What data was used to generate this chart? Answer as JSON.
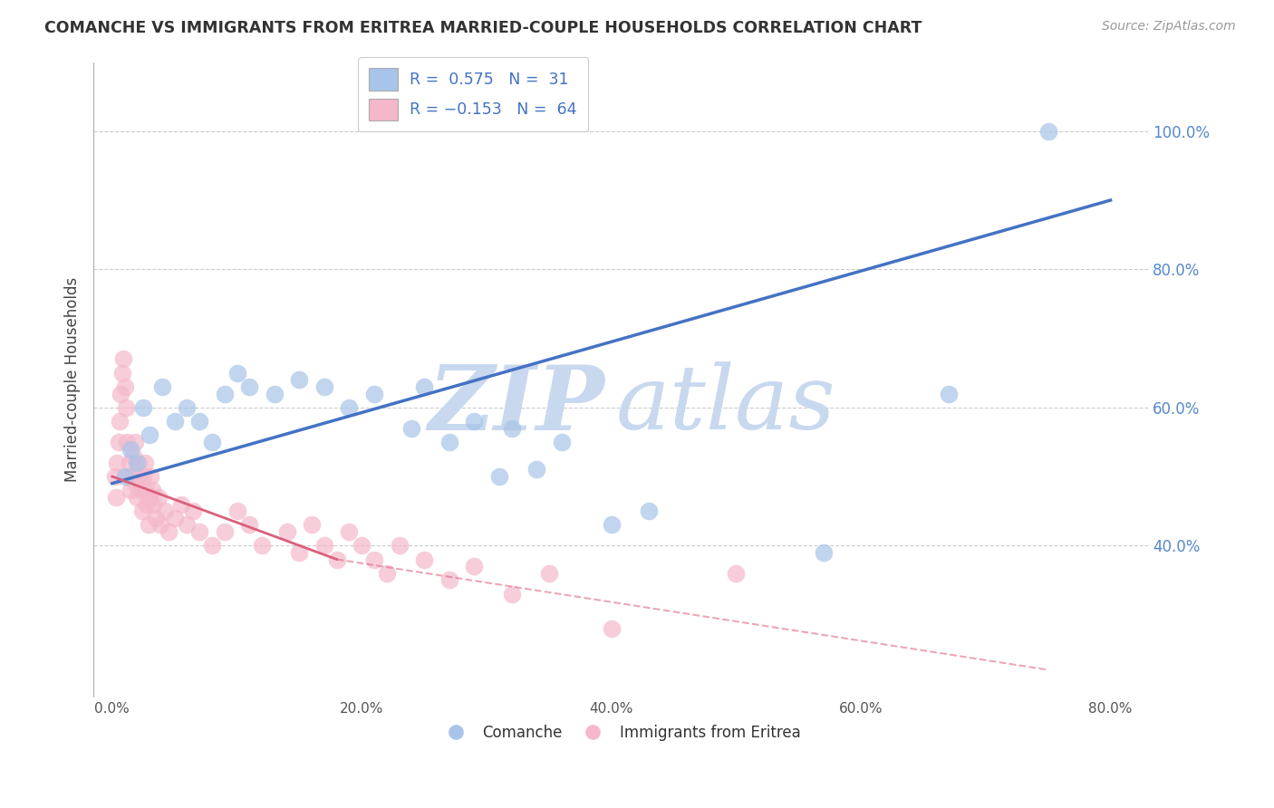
{
  "title": "COMANCHE VS IMMIGRANTS FROM ERITREA MARRIED-COUPLE HOUSEHOLDS CORRELATION CHART",
  "source": "Source: ZipAtlas.com",
  "ylabel": "Married-couple Households",
  "xlabel_vals": [
    0.0,
    20.0,
    40.0,
    60.0,
    80.0
  ],
  "ylabel_vals": [
    40.0,
    60.0,
    80.0,
    100.0
  ],
  "xlim": [
    -1.5,
    83
  ],
  "ylim": [
    18,
    110
  ],
  "blue_color": "#a8c4e8",
  "pink_color": "#f5b8cb",
  "blue_line_color": "#4472c4",
  "pink_line_color": "#d9607a",
  "watermark_zip_color": "#c8d8ee",
  "watermark_atlas_color": "#c8d8ee",
  "background_color": "#ffffff",
  "grid_color": "#cccccc",
  "blue_dots_x": [
    1.0,
    1.5,
    2.0,
    2.5,
    3.0,
    4.0,
    5.0,
    6.0,
    7.0,
    8.0,
    9.0,
    10.0,
    11.0,
    13.0,
    15.0,
    17.0,
    19.0,
    21.0,
    24.0,
    25.0,
    27.0,
    29.0,
    31.0,
    32.0,
    34.0,
    36.0,
    40.0,
    43.0,
    57.0,
    67.0,
    75.0
  ],
  "blue_dots_y": [
    50,
    54,
    52,
    60,
    56,
    63,
    58,
    60,
    58,
    55,
    62,
    65,
    63,
    62,
    64,
    63,
    60,
    62,
    57,
    63,
    55,
    58,
    50,
    57,
    51,
    55,
    43,
    45,
    39,
    62,
    100
  ],
  "pink_dots_x": [
    0.2,
    0.3,
    0.4,
    0.5,
    0.6,
    0.7,
    0.8,
    0.9,
    1.0,
    1.1,
    1.2,
    1.3,
    1.4,
    1.5,
    1.6,
    1.7,
    1.8,
    1.9,
    2.0,
    2.1,
    2.2,
    2.3,
    2.4,
    2.5,
    2.6,
    2.7,
    2.8,
    2.9,
    3.0,
    3.1,
    3.2,
    3.3,
    3.5,
    3.7,
    3.9,
    4.2,
    4.5,
    5.0,
    5.5,
    6.0,
    6.5,
    7.0,
    8.0,
    9.0,
    10.0,
    11.0,
    12.0,
    14.0,
    15.0,
    16.0,
    17.0,
    18.0,
    19.0,
    20.0,
    21.0,
    22.0,
    23.0,
    25.0,
    27.0,
    29.0,
    32.0,
    35.0,
    40.0,
    50.0
  ],
  "pink_dots_y": [
    50,
    47,
    52,
    55,
    58,
    62,
    65,
    67,
    63,
    60,
    55,
    50,
    52,
    48,
    50,
    53,
    55,
    49,
    47,
    52,
    50,
    48,
    45,
    50,
    52,
    48,
    46,
    43,
    47,
    50,
    48,
    46,
    44,
    47,
    43,
    45,
    42,
    44,
    46,
    43,
    45,
    42,
    40,
    42,
    45,
    43,
    40,
    42,
    39,
    43,
    40,
    38,
    42,
    40,
    38,
    36,
    40,
    38,
    35,
    37,
    33,
    36,
    28,
    36
  ],
  "blue_line_x0": 0,
  "blue_line_y0": 49,
  "blue_line_x1": 80,
  "blue_line_y1": 90,
  "pink_line_solid_x0": 0,
  "pink_line_solid_y0": 50,
  "pink_line_solid_x1": 18,
  "pink_line_solid_y1": 38,
  "pink_line_dash_x1": 75,
  "pink_line_dash_y1": 22
}
